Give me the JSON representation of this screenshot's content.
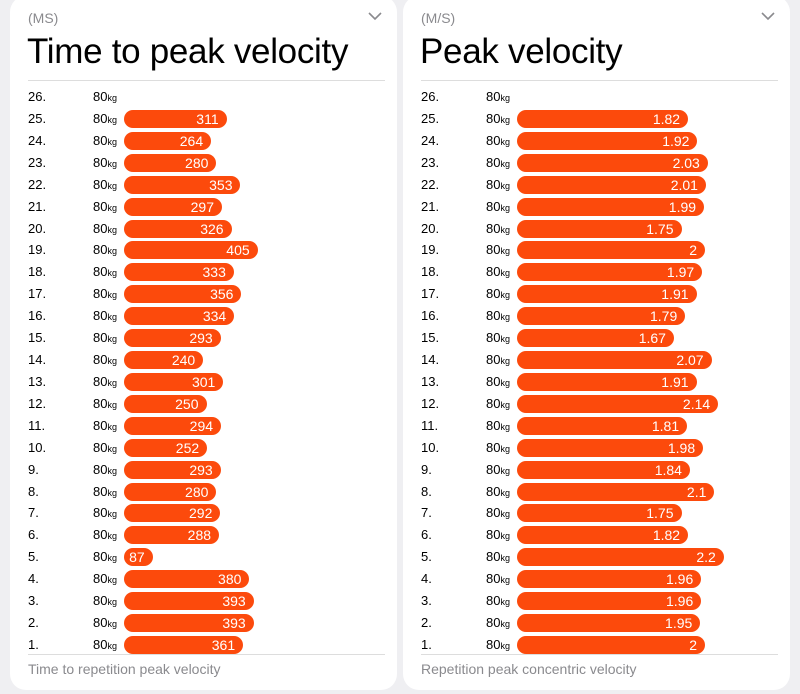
{
  "bar_color": "#fc4a0c",
  "chart_data": [
    {
      "type": "bar",
      "orientation": "horizontal",
      "unit": "(MS)",
      "title": "Time to peak velocity",
      "footer": "Time to repetition peak velocity",
      "categories": [
        "26.",
        "25.",
        "24.",
        "23.",
        "22.",
        "21.",
        "20.",
        "19.",
        "18.",
        "17.",
        "16.",
        "15.",
        "14.",
        "13.",
        "12.",
        "11.",
        "10.",
        "9.",
        "8.",
        "7.",
        "6.",
        "5.",
        "4.",
        "3.",
        "2.",
        "1."
      ],
      "weight": "80",
      "weight_unit": "kg",
      "values": [
        null,
        311,
        264,
        280,
        353,
        297,
        326,
        405,
        333,
        356,
        334,
        293,
        240,
        301,
        250,
        294,
        252,
        293,
        280,
        292,
        288,
        87,
        380,
        393,
        393,
        361
      ],
      "labels": [
        "",
        "311",
        "264",
        "280",
        "353",
        "297",
        "326",
        "405",
        "333",
        "356",
        "334",
        "293",
        "240",
        "301",
        "250",
        "294",
        "252",
        "293",
        "280",
        "292",
        "288",
        "87",
        "380",
        "393",
        "393",
        "361"
      ],
      "scale": 0.33
    },
    {
      "type": "bar",
      "orientation": "horizontal",
      "unit": "(M/S)",
      "title": "Peak velocity",
      "footer": "Repetition peak concentric velocity",
      "categories": [
        "26.",
        "25.",
        "24.",
        "23.",
        "22.",
        "21.",
        "20.",
        "19.",
        "18.",
        "17.",
        "16.",
        "15.",
        "14.",
        "13.",
        "12.",
        "11.",
        "10.",
        "9.",
        "8.",
        "7.",
        "6.",
        "5.",
        "4.",
        "3.",
        "2.",
        "1."
      ],
      "weight": "80",
      "weight_unit": "kg",
      "values": [
        null,
        1.82,
        1.92,
        2.03,
        2.01,
        1.99,
        1.75,
        2,
        1.97,
        1.91,
        1.79,
        1.67,
        2.07,
        1.91,
        2.14,
        1.81,
        1.98,
        1.84,
        2.1,
        1.75,
        1.82,
        2.2,
        1.96,
        1.96,
        1.95,
        2
      ],
      "labels": [
        "",
        "1.82",
        "1.92",
        "2.03",
        "2.01",
        "1.99",
        "1.75",
        "2",
        "1.97",
        "1.91",
        "1.79",
        "1.67",
        "2.07",
        "1.91",
        "2.14",
        "1.81",
        "1.98",
        "1.84",
        "2.1",
        "1.75",
        "1.82",
        "2.2",
        "1.96",
        "1.96",
        "1.95",
        "2"
      ],
      "scale": 94
    }
  ]
}
